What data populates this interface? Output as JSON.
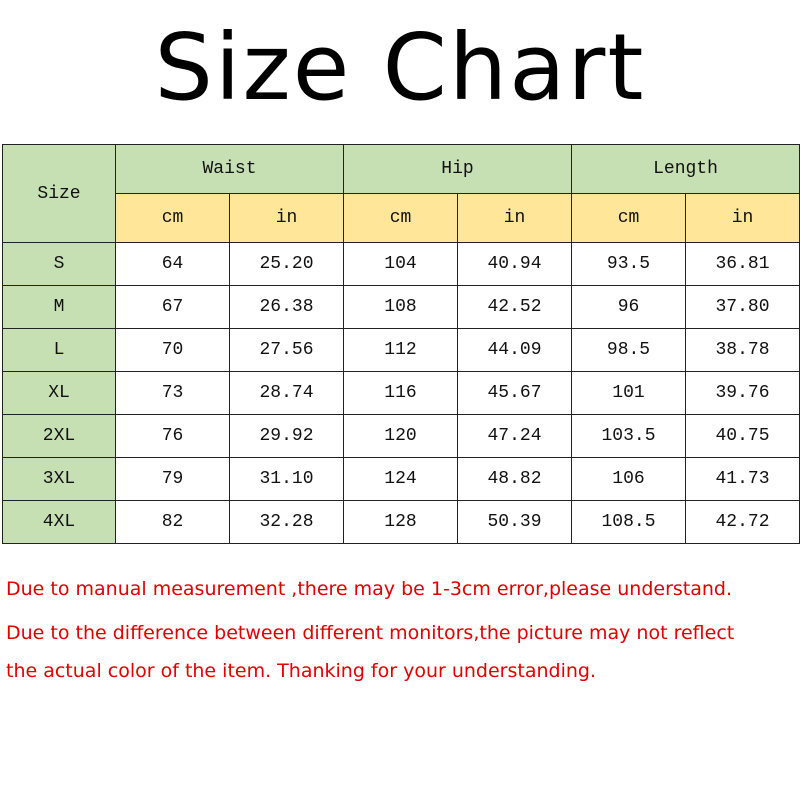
{
  "title": "Size Chart",
  "colors": {
    "header_green": "#c6e0b4",
    "unit_yellow": "#ffe699",
    "note_red": "#e00000"
  },
  "table": {
    "size_header": "Size",
    "groups": [
      "Waist",
      "Hip",
      "Length"
    ],
    "units": [
      "cm",
      "in",
      "cm",
      "in",
      "cm",
      "in"
    ],
    "rows": [
      {
        "size": "S",
        "values": [
          "64",
          "25.20",
          "104",
          "40.94",
          "93.5",
          "36.81"
        ]
      },
      {
        "size": "M",
        "values": [
          "67",
          "26.38",
          "108",
          "42.52",
          "96",
          "37.80"
        ]
      },
      {
        "size": "L",
        "values": [
          "70",
          "27.56",
          "112",
          "44.09",
          "98.5",
          "38.78"
        ]
      },
      {
        "size": "XL",
        "values": [
          "73",
          "28.74",
          "116",
          "45.67",
          "101",
          "39.76"
        ]
      },
      {
        "size": "2XL",
        "values": [
          "76",
          "29.92",
          "120",
          "47.24",
          "103.5",
          "40.75"
        ]
      },
      {
        "size": "3XL",
        "values": [
          "79",
          "31.10",
          "124",
          "48.82",
          "106",
          "41.73"
        ]
      },
      {
        "size": "4XL",
        "values": [
          "82",
          "32.28",
          "128",
          "50.39",
          "108.5",
          "42.72"
        ]
      }
    ]
  },
  "notes": [
    "Due to manual measurement ,there may be 1-3cm error,please understand.",
    "Due to the difference between different monitors,the picture may not reflect",
    "the actual color of the item. Thanking for your understanding."
  ]
}
